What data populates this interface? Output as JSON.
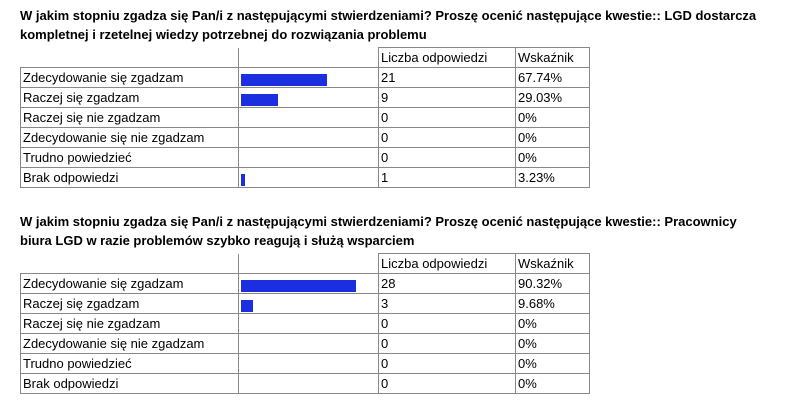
{
  "tables": [
    {
      "title": "W jakim stopniu zgadza się Pan/i z następującymi stwierdzeniami? Proszę ocenić następujące kwestie:: LGD dostarcza kompletnej i rzetelnej wiedzy potrzebnej do rozwiązania problemu",
      "headers": [
        "Liczba odpowiedzi",
        "Wskaźnik"
      ],
      "categories": [
        "Zdecydowanie się zgadzam",
        "Raczej się zgadzam",
        "Raczej się nie zgadzam",
        "Zdecydowanie się nie zgadzam",
        "Trudno powiedzieć",
        "Brak odpowiedzi"
      ],
      "counts": [
        21,
        9,
        0,
        0,
        0,
        1
      ],
      "shares": [
        67.74,
        29.03,
        0,
        0,
        0,
        3.23
      ],
      "share_labels": [
        "67.74%",
        "29.03%",
        "0%",
        "0%",
        "0%",
        "3.23%"
      ],
      "bar_color": "#1c2fe0"
    },
    {
      "title": "W jakim stopniu zgadza się Pan/i z następującymi stwierdzeniami? Proszę ocenić następujące kwestie:: Pracownicy biura LGD w razie problemów szybko reagują i służą wsparciem",
      "headers": [
        "Liczba odpowiedzi",
        "Wskaźnik"
      ],
      "categories": [
        "Zdecydowanie się zgadzam",
        "Raczej się zgadzam",
        "Raczej się nie zgadzam",
        "Zdecydowanie się nie zgadzam",
        "Trudno powiedzieć",
        "Brak odpowiedzi"
      ],
      "counts": [
        28,
        3,
        0,
        0,
        0,
        0
      ],
      "shares": [
        90.32,
        9.68,
        0,
        0,
        0,
        0
      ],
      "share_labels": [
        "90.32%",
        "9.68%",
        "0%",
        "0%",
        "0%",
        "0%"
      ],
      "bar_color": "#1c2fe0"
    }
  ]
}
